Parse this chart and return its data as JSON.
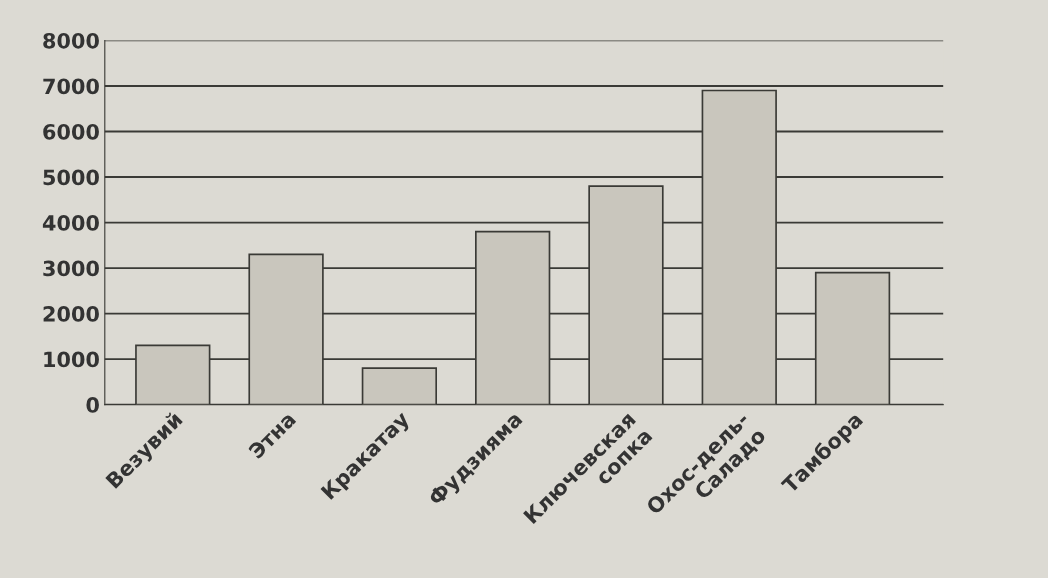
{
  "chart_data": {
    "type": "bar",
    "categories": [
      "Везувий",
      "Этна",
      "Кракатау",
      "Фудзияма",
      "Ключевская\nсопка",
      "Охос-дель-\nСаладо",
      "Тамбора"
    ],
    "values": [
      1300,
      3300,
      800,
      3800,
      4800,
      6900,
      2900
    ],
    "color": "#c9c6bd",
    "ylim": [
      0,
      8000
    ],
    "yticks": [
      0,
      1000,
      2000,
      3000,
      4000,
      5000,
      6000,
      7000,
      8000
    ],
    "grid": "y"
  }
}
